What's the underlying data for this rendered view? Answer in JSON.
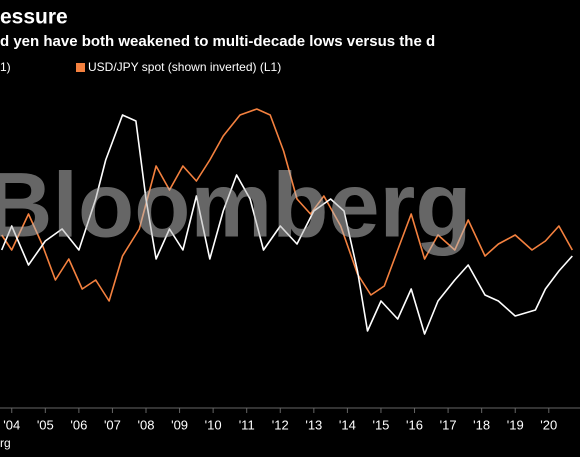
{
  "chart_data": {
    "type": "line",
    "title": "essure",
    "subtitle": "d yen have both weakened to multi-decade lows versus the d",
    "legend_fragment": "1)",
    "watermark": "Bloomberg",
    "source": "rg",
    "xlim": [
      2004.15,
      2021.43
    ],
    "ylim": [
      0,
      100
    ],
    "xticks": [
      {
        "value": 2004.5,
        "label": "'04"
      },
      {
        "value": 2005.5,
        "label": "'05"
      },
      {
        "value": 2006.5,
        "label": "'06"
      },
      {
        "value": 2007.5,
        "label": "'07"
      },
      {
        "value": 2008.5,
        "label": "'08"
      },
      {
        "value": 2009.5,
        "label": "'09"
      },
      {
        "value": 2010.5,
        "label": "'10"
      },
      {
        "value": 2011.5,
        "label": "'11"
      },
      {
        "value": 2012.5,
        "label": "'12"
      },
      {
        "value": 2013.5,
        "label": "'13"
      },
      {
        "value": 2014.5,
        "label": "'14"
      },
      {
        "value": 2015.5,
        "label": "'15"
      },
      {
        "value": 2016.5,
        "label": "'16"
      },
      {
        "value": 2017.5,
        "label": "'17"
      },
      {
        "value": 2018.5,
        "label": "'18"
      },
      {
        "value": 2019.5,
        "label": "'19"
      },
      {
        "value": 2020.5,
        "label": "'20"
      }
    ],
    "series": [
      {
        "name": null,
        "color": "#ffffff",
        "x": [
          2004.2,
          2004.5,
          2005.0,
          2005.5,
          2006.0,
          2006.5,
          2007.0,
          2007.3,
          2007.8,
          2008.2,
          2008.5,
          2008.8,
          2009.2,
          2009.6,
          2010.0,
          2010.4,
          2010.8,
          2011.2,
          2011.6,
          2012.0,
          2012.5,
          2013.0,
          2013.5,
          2014.0,
          2014.4,
          2014.8,
          2015.1,
          2015.5,
          2016.0,
          2016.4,
          2016.8,
          2017.2,
          2017.7,
          2018.1,
          2018.6,
          2019.0,
          2019.5,
          2020.1,
          2020.4,
          2020.8,
          2021.2
        ],
        "values": [
          50,
          58,
          45,
          53,
          57,
          50,
          67,
          80,
          95,
          93,
          67,
          47,
          57,
          50,
          68,
          47,
          63,
          75,
          67,
          50,
          58,
          52,
          63,
          67,
          63,
          43,
          23,
          33,
          27,
          37,
          22,
          33,
          40,
          45,
          35,
          33,
          28,
          30,
          37,
          43,
          48
        ]
      },
      {
        "name": "USD/JPY spot (shown inverted) (L1)",
        "color": "#f4813f",
        "x": [
          2004.2,
          2004.5,
          2005.0,
          2005.4,
          2005.8,
          2006.2,
          2006.6,
          2007.0,
          2007.4,
          2007.8,
          2008.3,
          2008.8,
          2009.2,
          2009.6,
          2010.0,
          2010.4,
          2010.8,
          2011.3,
          2011.8,
          2012.2,
          2012.6,
          2013.0,
          2013.4,
          2013.8,
          2014.3,
          2014.8,
          2015.2,
          2015.6,
          2016.0,
          2016.4,
          2016.8,
          2017.2,
          2017.7,
          2018.1,
          2018.6,
          2019.0,
          2019.5,
          2020.0,
          2020.4,
          2020.8,
          2021.2
        ],
        "values": [
          55,
          50,
          62,
          52,
          40,
          47,
          37,
          40,
          33,
          48,
          57,
          78,
          70,
          78,
          73,
          80,
          88,
          95,
          97,
          95,
          83,
          67,
          62,
          68,
          58,
          42,
          35,
          38,
          50,
          62,
          47,
          55,
          50,
          60,
          48,
          52,
          55,
          50,
          53,
          58,
          50
        ]
      }
    ]
  }
}
